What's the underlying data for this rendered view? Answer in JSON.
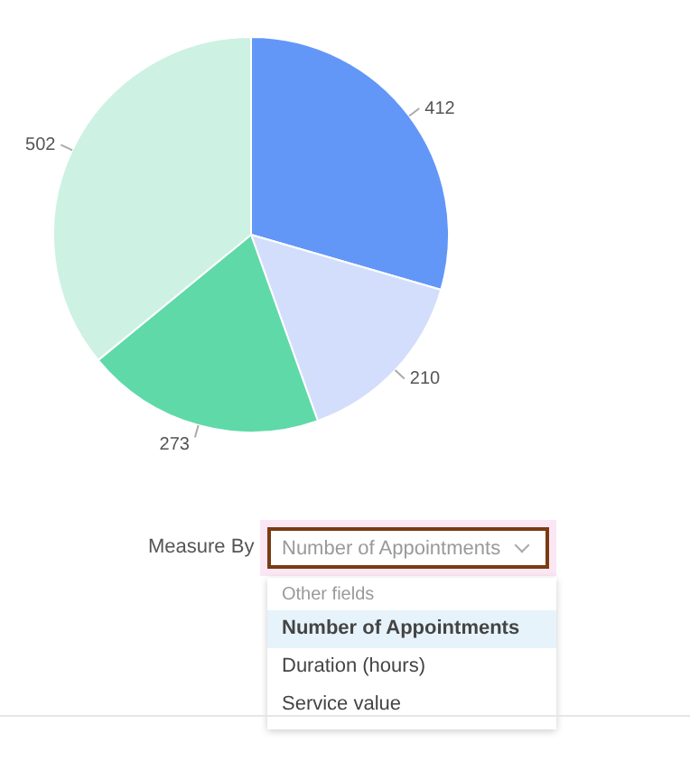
{
  "chart_data": {
    "type": "pie",
    "categories": [
      null,
      null,
      null,
      null
    ],
    "values": [
      412,
      210,
      273,
      502
    ],
    "colors": [
      "#6297f8",
      "#d3defc",
      "#5fd9a8",
      "#cdf1e3"
    ],
    "data_labels": true,
    "legend": false,
    "annotations": [
      "Measure By",
      "Number of Appointments",
      "Other fields",
      "Number of Appointments",
      "Duration (hours)",
      "Service value"
    ]
  }
}
